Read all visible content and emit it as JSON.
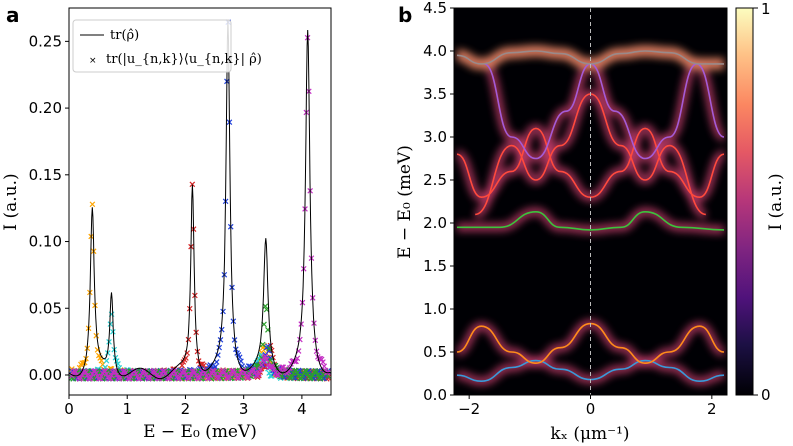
{
  "panel_a": {
    "label": "a",
    "xlabel": "E − E₀ (meV)",
    "ylabel": "I (a.u.)",
    "legend": [
      "tr(ρ̂)",
      "tr(|u_{n,k}⟩⟨u_{n,k}| ρ̂)"
    ]
  },
  "panel_b": {
    "label": "b",
    "xlabel": "kₓ (μm⁻¹)",
    "ylabel": "E − E₀ (meV)",
    "colorbar_label": "I (a.u.)",
    "colorbar_min": "0",
    "colorbar_max": "1"
  },
  "colors": {
    "orange": "#ffa500",
    "cyan": "#2bd1d4",
    "red": "#d62728",
    "blue": "#1f3fd9",
    "green": "#2ca02c",
    "magenta": "#c42fc4",
    "background_b": "#000004"
  },
  "chart_data": [
    {
      "type": "line",
      "title": "",
      "xlabel": "E − E₀ (meV)",
      "ylabel": "I (a.u.)",
      "xlim": [
        0,
        4.5
      ],
      "ylim": [
        -0.015,
        0.275
      ],
      "xticks": [
        0,
        1,
        2,
        3,
        4
      ],
      "yticks": [
        0.0,
        0.05,
        0.1,
        0.15,
        0.2,
        0.25
      ],
      "ytick_labels": [
        "0.00",
        "0.05",
        "0.10",
        "0.15",
        "0.20",
        "0.25"
      ],
      "legend_position": "top-left",
      "series": [
        {
          "name": "tr(ρ̂)",
          "style": "line",
          "peaks": [
            {
              "center": 0.4,
              "height": 0.123,
              "width": 0.08
            },
            {
              "center": 0.73,
              "height": 0.061,
              "width": 0.07
            },
            {
              "center": 2.12,
              "height": 0.142,
              "width": 0.07
            },
            {
              "center": 2.73,
              "height": 0.263,
              "width": 0.08
            },
            {
              "center": 3.38,
              "height": 0.097,
              "width": 0.09
            },
            {
              "center": 4.1,
              "height": 0.255,
              "width": 0.09
            }
          ]
        },
        {
          "name": "tr(|u_{n,k}⟩⟨u_{n,k}| ρ̂)",
          "style": "markers",
          "components": [
            {
              "color": "orange",
              "peaks": [
                {
                  "center": 0.4,
                  "height": 0.126,
                  "width": 0.08
                },
                {
                  "center": 3.35,
                  "height": 0.025,
                  "width": 0.12
                }
              ]
            },
            {
              "color": "cyan",
              "peaks": [
                {
                  "center": 0.73,
                  "height": 0.048,
                  "width": 0.08
                },
                {
                  "center": 3.3,
                  "height": 0.018,
                  "width": 0.12
                }
              ]
            },
            {
              "color": "red",
              "peaks": [
                {
                  "center": 2.12,
                  "height": 0.141,
                  "width": 0.07
                },
                {
                  "center": 3.45,
                  "height": 0.022,
                  "width": 0.1
                }
              ]
            },
            {
              "color": "blue",
              "peaks": [
                {
                  "center": 2.73,
                  "height": 0.265,
                  "width": 0.08
                },
                {
                  "center": 3.4,
                  "height": 0.02,
                  "width": 0.12
                }
              ]
            },
            {
              "color": "green",
              "peaks": [
                {
                  "center": 3.38,
                  "height": 0.05,
                  "width": 0.1
                }
              ]
            },
            {
              "color": "magenta",
              "peaks": [
                {
                  "center": 4.1,
                  "height": 0.256,
                  "width": 0.09
                },
                {
                  "center": 3.38,
                  "height": 0.014,
                  "width": 0.1
                }
              ]
            }
          ]
        }
      ]
    },
    {
      "type": "heatmap",
      "title": "",
      "xlabel": "kₓ (μm⁻¹)",
      "ylabel": "E − E₀ (meV)",
      "xlim": [
        -2.25,
        2.25
      ],
      "ylim": [
        0,
        4.5
      ],
      "xticks": [
        -2,
        0,
        2
      ],
      "yticks": [
        0.0,
        0.5,
        1.0,
        1.5,
        2.0,
        2.5,
        3.0,
        3.5,
        4.0,
        4.5
      ],
      "ytick_labels": [
        "0.0",
        "0.5",
        "1.0",
        "1.5",
        "2.0",
        "2.5",
        "3.0",
        "3.5",
        "4.0",
        "4.5"
      ],
      "colorbar": {
        "label": "I (a.u.)",
        "range": [
          0,
          1
        ],
        "ticks": [
          "0",
          "1"
        ],
        "colormap": "magma"
      },
      "bands": [
        {
          "color": "#3a9ad9",
          "x": [
            -2.2,
            -1.8,
            -1.3,
            -0.9,
            -0.5,
            0,
            0.5,
            0.9,
            1.3,
            1.8,
            2.2
          ],
          "y": [
            0.23,
            0.16,
            0.32,
            0.4,
            0.3,
            0.18,
            0.3,
            0.4,
            0.32,
            0.16,
            0.23
          ]
        },
        {
          "color": "#ff8c1a",
          "x": [
            -2.2,
            -1.8,
            -1.3,
            -0.9,
            -0.5,
            0,
            0.5,
            0.9,
            1.3,
            1.8,
            2.2
          ],
          "y": [
            0.5,
            0.8,
            0.5,
            0.37,
            0.55,
            0.83,
            0.55,
            0.37,
            0.5,
            0.8,
            0.5
          ]
        },
        {
          "color": "#3cc43c",
          "x": [
            -2.2,
            -1.5,
            -0.9,
            -0.5,
            0,
            0.5,
            0.9,
            1.5,
            2.2
          ],
          "y": [
            1.95,
            1.95,
            2.13,
            1.95,
            1.92,
            1.95,
            2.13,
            1.95,
            1.92
          ]
        },
        {
          "color": "#ff4a3d",
          "x": [
            -2.2,
            -1.8,
            -1.3,
            -0.9,
            -0.5,
            0,
            0.5,
            0.9,
            1.3,
            1.8,
            2.2
          ],
          "y": [
            2.8,
            2.3,
            2.6,
            3.1,
            2.6,
            2.3,
            2.6,
            3.1,
            2.6,
            2.3,
            2.8
          ]
        },
        {
          "color": "#ff4a3d",
          "x": [
            -1.9,
            -1.3,
            -0.9,
            -0.5,
            0,
            0.5,
            0.9,
            1.3,
            1.9
          ],
          "y": [
            2.1,
            2.9,
            2.5,
            2.9,
            3.5,
            2.9,
            2.5,
            2.9,
            2.1
          ]
        },
        {
          "color": "#a55bd6",
          "x": [
            -1.75,
            -1.3,
            -0.9,
            -0.4,
            0,
            0.4,
            0.9,
            1.3,
            1.75,
            2.2
          ],
          "y": [
            3.85,
            3.0,
            2.75,
            3.3,
            3.85,
            3.3,
            2.75,
            3.0,
            3.85,
            3.0
          ]
        },
        {
          "color": "#9a8a8a",
          "x": [
            -2.2,
            -1.8,
            -1.3,
            -0.9,
            -0.5,
            0,
            0.5,
            0.9,
            1.3,
            1.8,
            2.2
          ],
          "y": [
            3.95,
            3.85,
            3.98,
            4.0,
            3.97,
            3.85,
            3.97,
            4.0,
            3.98,
            3.85,
            3.85
          ]
        }
      ],
      "vline_x": 0
    }
  ]
}
